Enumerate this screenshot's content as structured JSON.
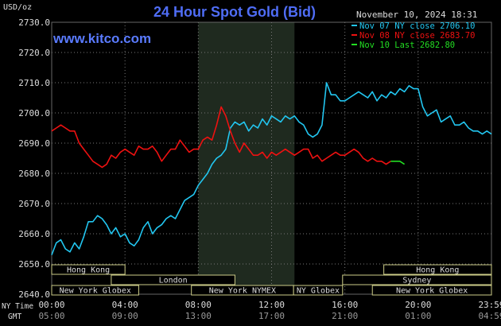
{
  "header": {
    "title": "24 Hour Spot Gold (Bid)",
    "site": "www.kitco.com",
    "date": "November 10, 2024 18:31",
    "unit": "USD/oz"
  },
  "colors": {
    "background": "#000000",
    "title": "#4f6df5",
    "site": "#5a7bff",
    "grid": "#777777",
    "text": "#dddddd",
    "session_shade": "#1f2a1f",
    "session_band_fill": "#000000",
    "session_band_border": "#cccc88",
    "series": [
      "#22c6f0",
      "#ee1111",
      "#22dd22"
    ]
  },
  "legend": [
    {
      "label": "Nov 07 NY close 2706.10",
      "color": "#22c6f0"
    },
    {
      "label": "Nov 08 NY close 2683.70",
      "color": "#ee1111"
    },
    {
      "label": "Nov 10 Last 2682.80",
      "color": "#22dd22"
    }
  ],
  "axis": {
    "ny_time_label": "NY Time",
    "gmt_label": "GMT",
    "x_ticks": [
      {
        "ny": "00:00",
        "gmt": "05:00"
      },
      {
        "ny": "04:00",
        "gmt": "09:00"
      },
      {
        "ny": "08:00",
        "gmt": "13:00"
      },
      {
        "ny": "12:00",
        "gmt": "17:00"
      },
      {
        "ny": "16:00",
        "gmt": "21:00"
      },
      {
        "ny": "20:00",
        "gmt": "01:00"
      },
      {
        "ny": "23:59",
        "gmt": "04:59"
      }
    ],
    "y_ticks": [
      "2730.0",
      "2720.0",
      "2710.0",
      "2700.0",
      "2690.0",
      "2680.0",
      "2670.0",
      "2660.0",
      "2650.0",
      "2640.0"
    ]
  },
  "sessions": [
    {
      "label": "Hong Kong",
      "start": 0.0,
      "end": 8.0,
      "row": 1
    },
    {
      "label": "London",
      "start": 6.5,
      "end": 20.0,
      "row": 2
    },
    {
      "label": "New York Globex",
      "start": 0.0,
      "end": 9.5,
      "row": 3
    },
    {
      "label": "New York NYMEX",
      "start": 15.25,
      "end": 26.4,
      "row": 3
    },
    {
      "label": "NY Globex",
      "start": 26.4,
      "end": 31.75,
      "row": 3
    },
    {
      "label": "Hong Kong",
      "start": 36.25,
      "end": 48.0,
      "row": 1
    },
    {
      "label": "Sydney",
      "start": 31.75,
      "end": 48.0,
      "row": 2
    },
    {
      "label": "New York Globex",
      "start": 35.0,
      "end": 48.0,
      "row": 3
    }
  ],
  "chart_data": {
    "type": "line",
    "title": "24 Hour Spot Gold (Bid)",
    "xlabel": "NY Time",
    "ylabel": "USD/oz",
    "x_unit": "hour of day (NY time)",
    "xlim": [
      0,
      24
    ],
    "ylim": [
      2640,
      2730
    ],
    "grid": true,
    "legend_position": "top-right",
    "shaded_region": [
      8.0,
      13.25
    ],
    "series": [
      {
        "name": "Nov 07 NY close 2706.10",
        "color": "#22c6f0",
        "x": [
          0,
          0.25,
          0.5,
          0.75,
          1.0,
          1.25,
          1.5,
          1.75,
          2.0,
          2.25,
          2.5,
          2.75,
          3.0,
          3.25,
          3.5,
          3.75,
          4.0,
          4.25,
          4.5,
          4.75,
          5.0,
          5.25,
          5.5,
          5.75,
          6.0,
          6.25,
          6.5,
          6.75,
          7.0,
          7.25,
          7.5,
          7.75,
          8.0,
          8.25,
          8.5,
          8.75,
          9.0,
          9.25,
          9.5,
          9.75,
          10.0,
          10.25,
          10.5,
          10.75,
          11.0,
          11.25,
          11.5,
          11.75,
          12.0,
          12.25,
          12.5,
          12.75,
          13.0,
          13.25,
          13.5,
          13.75,
          14.0,
          14.25,
          14.5,
          14.75,
          15.0,
          15.25,
          15.5,
          15.75,
          16.0,
          16.25,
          16.5,
          16.75,
          17.0,
          17.25,
          17.5,
          17.75,
          18.0,
          18.25,
          18.5,
          18.75,
          19.0,
          19.25,
          19.5,
          19.75,
          20.0,
          20.25,
          20.5,
          20.75,
          21.0,
          21.25,
          21.5,
          21.75,
          22.0,
          22.25,
          22.5,
          22.75,
          23.0,
          23.25,
          23.5,
          23.75,
          24.0
        ],
        "y": [
          2653,
          2657,
          2658,
          2655,
          2654,
          2657,
          2655,
          2659,
          2664,
          2664,
          2666,
          2665,
          2663,
          2660,
          2662,
          2659,
          2660,
          2657,
          2656,
          2658,
          2662,
          2664,
          2660,
          2662,
          2663,
          2665,
          2666,
          2665,
          2668,
          2671,
          2672,
          2673,
          2676,
          2678,
          2680,
          2683,
          2685,
          2686,
          2688,
          2695,
          2697,
          2696,
          2697,
          2694,
          2696,
          2695,
          2698,
          2696,
          2699,
          2698,
          2697,
          2699,
          2698,
          2699,
          2697,
          2696,
          2693,
          2692,
          2693,
          2696,
          2710,
          2706,
          2706,
          2704,
          2704,
          2705,
          2706,
          2707,
          2706,
          2705,
          2707,
          2704,
          2706,
          2705,
          2707,
          2706,
          2708,
          2707,
          2709,
          2708,
          2708,
          2702,
          2699,
          2700,
          2701,
          2697,
          2698,
          2699,
          2696,
          2696,
          2697,
          2695,
          2694,
          2694,
          2693,
          2694,
          2693
        ]
      },
      {
        "name": "Nov 08 NY close 2683.70",
        "color": "#ee1111",
        "x": [
          0,
          0.25,
          0.5,
          0.75,
          1.0,
          1.25,
          1.5,
          1.75,
          2.0,
          2.25,
          2.5,
          2.75,
          3.0,
          3.25,
          3.5,
          3.75,
          4.0,
          4.25,
          4.5,
          4.75,
          5.0,
          5.25,
          5.5,
          5.75,
          6.0,
          6.25,
          6.5,
          6.75,
          7.0,
          7.25,
          7.5,
          7.75,
          8.0,
          8.25,
          8.5,
          8.75,
          9.0,
          9.25,
          9.5,
          9.75,
          10.0,
          10.25,
          10.5,
          10.75,
          11.0,
          11.25,
          11.5,
          11.75,
          12.0,
          12.25,
          12.5,
          12.75,
          13.0,
          13.25,
          13.5,
          13.75,
          14.0,
          14.25,
          14.5,
          14.75,
          15.0,
          15.25,
          15.5,
          15.75,
          16.0,
          16.25,
          16.5,
          16.75,
          17.0,
          17.25,
          17.5,
          17.75,
          18.0,
          18.25,
          18.5
        ],
        "y": [
          2694,
          2695,
          2696,
          2695,
          2694,
          2694,
          2690,
          2688,
          2686,
          2684,
          2683,
          2682,
          2683,
          2686,
          2685,
          2687,
          2688,
          2687,
          2686,
          2689,
          2688,
          2688,
          2689,
          2687,
          2684,
          2686,
          2688,
          2688,
          2691,
          2689,
          2687,
          2688,
          2688,
          2691,
          2692,
          2691,
          2696,
          2702,
          2699,
          2694,
          2690,
          2687,
          2690,
          2688,
          2686,
          2686,
          2687,
          2685,
          2687,
          2686,
          2687,
          2688,
          2687,
          2686,
          2687,
          2688,
          2688,
          2685,
          2686,
          2684,
          2685,
          2686,
          2687,
          2686,
          2686,
          2687,
          2688,
          2687,
          2685,
          2684,
          2685,
          2684,
          2684,
          2683,
          2684
        ]
      },
      {
        "name": "Nov 10 Last 2682.80",
        "color": "#22dd22",
        "x": [
          18.5,
          18.75,
          19.0,
          19.25
        ],
        "y": [
          2684,
          2684,
          2684,
          2683
        ]
      }
    ]
  }
}
